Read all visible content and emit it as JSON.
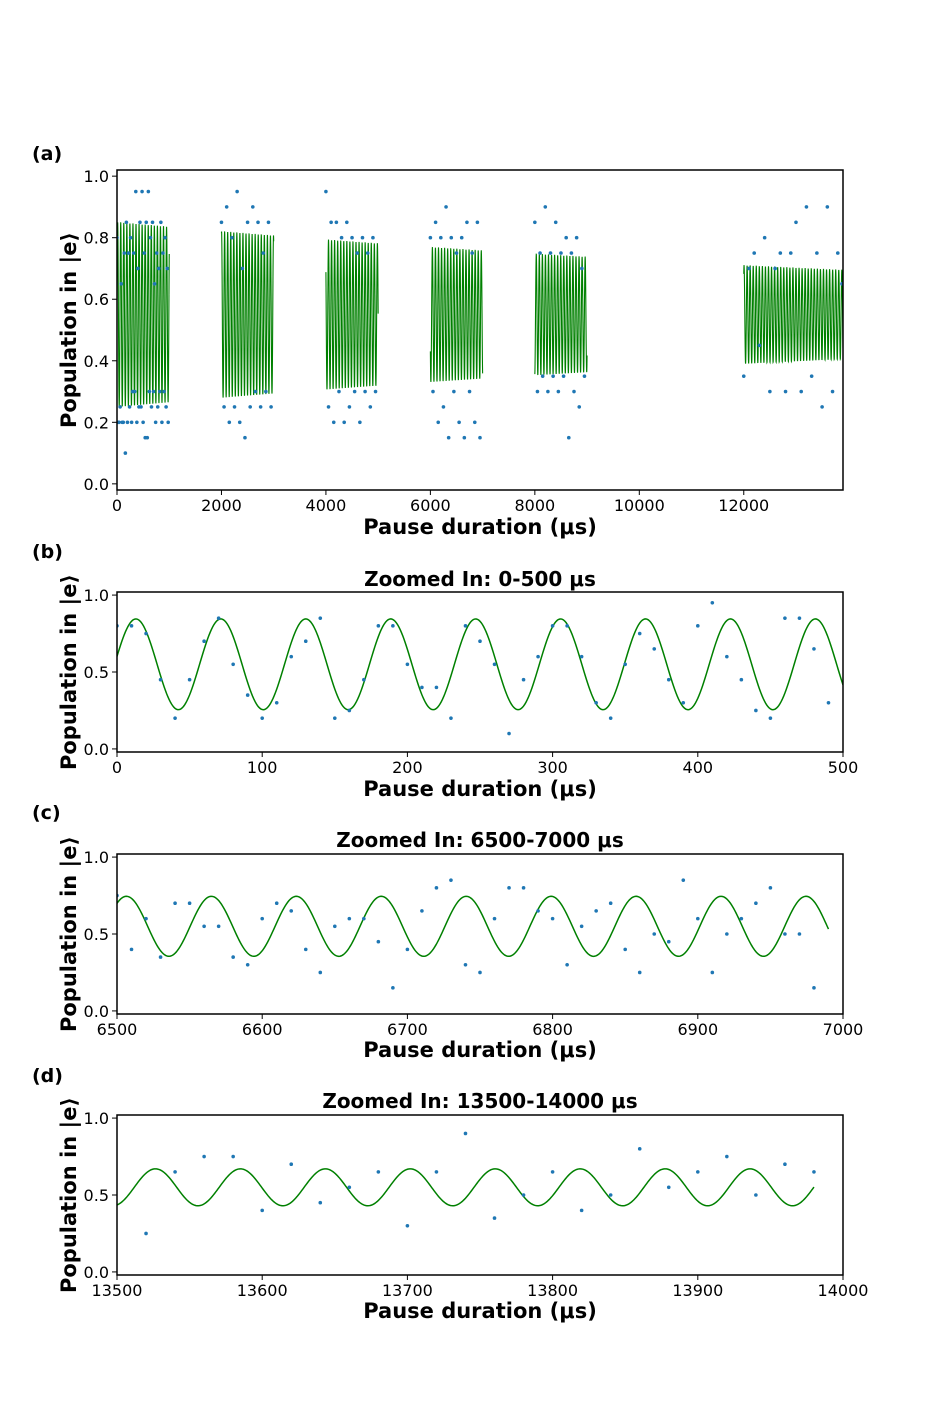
{
  "chart_data": [
    {
      "panel_label": "(a)",
      "type": "scatter",
      "title": "",
      "xlabel": "Pause duration (μs)",
      "ylabel": "Population in |e⟩",
      "xlim": [
        0,
        13900
      ],
      "ylim": [
        -0.02,
        1.02
      ],
      "xticks": [
        0,
        2000,
        4000,
        6000,
        8000,
        10000,
        12000
      ],
      "xtick_labels": [
        "0",
        "2000",
        "4000",
        "6000",
        "8000",
        "10000",
        "12000"
      ],
      "yticks": [
        0.0,
        0.2,
        0.4,
        0.6,
        0.8,
        1.0
      ],
      "ytick_labels": [
        "0.0",
        "0.2",
        "0.4",
        "0.6",
        "0.8",
        "1.0"
      ],
      "data_color": "#1f77b4",
      "fit_color": "#008000",
      "fit": {
        "period": 58.5,
        "phase": 13,
        "center": 0.55,
        "amplitude_start": 0.3,
        "decay_time": 19000
      },
      "windows": [
        [
          0,
          1000
        ],
        [
          2000,
          3000
        ],
        [
          4000,
          5000
        ],
        [
          6000,
          7000
        ],
        [
          8000,
          9000
        ],
        [
          12000,
          13900
        ]
      ],
      "data_points": [
        [
          0,
          0.8
        ],
        [
          20,
          0.2
        ],
        [
          40,
          0.2
        ],
        [
          60,
          0.25
        ],
        [
          80,
          0.65
        ],
        [
          100,
          0.2
        ],
        [
          120,
          0.2
        ],
        [
          140,
          0.75
        ],
        [
          160,
          0.1
        ],
        [
          180,
          0.85
        ],
        [
          200,
          0.2
        ],
        [
          220,
          0.75
        ],
        [
          240,
          0.25
        ],
        [
          260,
          0.8
        ],
        [
          280,
          0.2
        ],
        [
          300,
          0.3
        ],
        [
          320,
          0.75
        ],
        [
          340,
          0.3
        ],
        [
          360,
          0.95
        ],
        [
          380,
          0.2
        ],
        [
          400,
          0.7
        ],
        [
          420,
          0.25
        ],
        [
          440,
          0.85
        ],
        [
          460,
          0.25
        ],
        [
          480,
          0.95
        ],
        [
          500,
          0.2
        ],
        [
          520,
          0.75
        ],
        [
          540,
          0.15
        ],
        [
          560,
          0.85
        ],
        [
          580,
          0.15
        ],
        [
          600,
          0.95
        ],
        [
          620,
          0.3
        ],
        [
          640,
          0.8
        ],
        [
          660,
          0.25
        ],
        [
          680,
          0.85
        ],
        [
          700,
          0.3
        ],
        [
          720,
          0.65
        ],
        [
          740,
          0.2
        ],
        [
          760,
          0.75
        ],
        [
          780,
          0.25
        ],
        [
          800,
          0.7
        ],
        [
          820,
          0.3
        ],
        [
          840,
          0.85
        ],
        [
          860,
          0.2
        ],
        [
          880,
          0.75
        ],
        [
          900,
          0.3
        ],
        [
          920,
          0.8
        ],
        [
          940,
          0.25
        ],
        [
          960,
          0.7
        ],
        [
          980,
          0.2
        ],
        [
          2000,
          0.85
        ],
        [
          2050,
          0.25
        ],
        [
          2100,
          0.9
        ],
        [
          2150,
          0.2
        ],
        [
          2200,
          0.8
        ],
        [
          2250,
          0.25
        ],
        [
          2300,
          0.95
        ],
        [
          2350,
          0.2
        ],
        [
          2400,
          0.7
        ],
        [
          2450,
          0.15
        ],
        [
          2500,
          0.85
        ],
        [
          2550,
          0.25
        ],
        [
          2600,
          0.9
        ],
        [
          2650,
          0.3
        ],
        [
          2700,
          0.85
        ],
        [
          2750,
          0.25
        ],
        [
          2800,
          0.75
        ],
        [
          2850,
          0.3
        ],
        [
          2900,
          0.85
        ],
        [
          2950,
          0.25
        ],
        [
          4000,
          0.95
        ],
        [
          4050,
          0.25
        ],
        [
          4100,
          0.85
        ],
        [
          4150,
          0.2
        ],
        [
          4200,
          0.85
        ],
        [
          4250,
          0.3
        ],
        [
          4300,
          0.8
        ],
        [
          4350,
          0.2
        ],
        [
          4400,
          0.85
        ],
        [
          4450,
          0.25
        ],
        [
          4500,
          0.8
        ],
        [
          4550,
          0.3
        ],
        [
          4600,
          0.75
        ],
        [
          4650,
          0.2
        ],
        [
          4700,
          0.8
        ],
        [
          4750,
          0.3
        ],
        [
          4800,
          0.75
        ],
        [
          4850,
          0.25
        ],
        [
          4900,
          0.8
        ],
        [
          4950,
          0.3
        ],
        [
          6000,
          0.8
        ],
        [
          6050,
          0.3
        ],
        [
          6100,
          0.85
        ],
        [
          6150,
          0.2
        ],
        [
          6200,
          0.8
        ],
        [
          6250,
          0.25
        ],
        [
          6300,
          0.9
        ],
        [
          6350,
          0.15
        ],
        [
          6400,
          0.8
        ],
        [
          6450,
          0.3
        ],
        [
          6500,
          0.75
        ],
        [
          6550,
          0.2
        ],
        [
          6600,
          0.8
        ],
        [
          6650,
          0.15
        ],
        [
          6700,
          0.85
        ],
        [
          6750,
          0.3
        ],
        [
          6800,
          0.75
        ],
        [
          6850,
          0.2
        ],
        [
          6900,
          0.85
        ],
        [
          6950,
          0.15
        ],
        [
          8000,
          0.85
        ],
        [
          8050,
          0.3
        ],
        [
          8100,
          0.75
        ],
        [
          8150,
          0.35
        ],
        [
          8200,
          0.9
        ],
        [
          8250,
          0.3
        ],
        [
          8300,
          0.75
        ],
        [
          8350,
          0.35
        ],
        [
          8400,
          0.85
        ],
        [
          8450,
          0.3
        ],
        [
          8500,
          0.75
        ],
        [
          8550,
          0.35
        ],
        [
          8600,
          0.8
        ],
        [
          8650,
          0.15
        ],
        [
          8700,
          0.75
        ],
        [
          8750,
          0.3
        ],
        [
          8800,
          0.8
        ],
        [
          8850,
          0.25
        ],
        [
          8900,
          0.7
        ],
        [
          8950,
          0.35
        ],
        [
          12000,
          0.35
        ],
        [
          12100,
          0.7
        ],
        [
          12200,
          0.75
        ],
        [
          12300,
          0.45
        ],
        [
          12400,
          0.8
        ],
        [
          12500,
          0.3
        ],
        [
          12600,
          0.7
        ],
        [
          12700,
          0.75
        ],
        [
          12800,
          0.3
        ],
        [
          12900,
          0.75
        ],
        [
          13000,
          0.85
        ],
        [
          13100,
          0.3
        ],
        [
          13200,
          0.9
        ],
        [
          13300,
          0.35
        ],
        [
          13400,
          0.75
        ],
        [
          13500,
          0.25
        ],
        [
          13600,
          0.9
        ],
        [
          13700,
          0.3
        ],
        [
          13800,
          0.75
        ],
        [
          13880,
          0.65
        ]
      ]
    },
    {
      "panel_label": "(b)",
      "type": "scatter",
      "title": "Zoomed In: 0-500 μs",
      "xlabel": "Pause duration (μs)",
      "ylabel": "Population in |e⟩",
      "xlim": [
        0,
        500
      ],
      "ylim": [
        -0.02,
        1.02
      ],
      "xticks": [
        0,
        100,
        200,
        300,
        400,
        500
      ],
      "xtick_labels": [
        "0",
        "100",
        "200",
        "300",
        "400",
        "500"
      ],
      "yticks": [
        0.0,
        0.5,
        1.0
      ],
      "ytick_labels": [
        "0.0",
        "0.5",
        "1.0"
      ],
      "data_color": "#1f77b4",
      "fit_color": "#008000",
      "fit": {
        "period": 58.5,
        "phase": 13,
        "center": 0.55,
        "amplitude": 0.295
      },
      "data_points": [
        [
          0,
          0.8
        ],
        [
          10,
          0.8
        ],
        [
          20,
          0.75
        ],
        [
          30,
          0.45
        ],
        [
          40,
          0.2
        ],
        [
          50,
          0.45
        ],
        [
          60,
          0.7
        ],
        [
          70,
          0.85
        ],
        [
          80,
          0.55
        ],
        [
          90,
          0.35
        ],
        [
          100,
          0.2
        ],
        [
          110,
          0.3
        ],
        [
          120,
          0.6
        ],
        [
          130,
          0.7
        ],
        [
          140,
          0.85
        ],
        [
          150,
          0.2
        ],
        [
          160,
          0.25
        ],
        [
          170,
          0.45
        ],
        [
          180,
          0.8
        ],
        [
          190,
          0.8
        ],
        [
          200,
          0.55
        ],
        [
          210,
          0.4
        ],
        [
          220,
          0.4
        ],
        [
          230,
          0.2
        ],
        [
          240,
          0.8
        ],
        [
          250,
          0.7
        ],
        [
          260,
          0.55
        ],
        [
          270,
          0.1
        ],
        [
          280,
          0.45
        ],
        [
          290,
          0.6
        ],
        [
          300,
          0.8
        ],
        [
          310,
          0.8
        ],
        [
          320,
          0.6
        ],
        [
          330,
          0.3
        ],
        [
          340,
          0.2
        ],
        [
          350,
          0.55
        ],
        [
          360,
          0.75
        ],
        [
          370,
          0.65
        ],
        [
          380,
          0.45
        ],
        [
          390,
          0.3
        ],
        [
          400,
          0.8
        ],
        [
          410,
          0.95
        ],
        [
          420,
          0.6
        ],
        [
          430,
          0.45
        ],
        [
          440,
          0.25
        ],
        [
          450,
          0.2
        ],
        [
          460,
          0.85
        ],
        [
          470,
          0.85
        ],
        [
          480,
          0.65
        ],
        [
          490,
          0.3
        ]
      ]
    },
    {
      "panel_label": "(c)",
      "type": "scatter",
      "title": "Zoomed In: 6500-7000 μs",
      "xlabel": "Pause duration (μs)",
      "ylabel": "Population in |e⟩",
      "xlim": [
        6500,
        7000
      ],
      "ylim": [
        -0.02,
        1.02
      ],
      "xticks": [
        6500,
        6600,
        6700,
        6800,
        6900,
        7000
      ],
      "xtick_labels": [
        "6500",
        "6600",
        "6700",
        "6800",
        "6900",
        "7000"
      ],
      "yticks": [
        0.0,
        0.5,
        1.0
      ],
      "ytick_labels": [
        "0.0",
        "0.5",
        "1.0"
      ],
      "data_color": "#1f77b4",
      "fit_color": "#008000",
      "fit": {
        "period": 58.5,
        "phase": 13,
        "center": 0.55,
        "amplitude": 0.195,
        "x_end": 6990
      },
      "data_points": [
        [
          6500,
          0.75
        ],
        [
          6510,
          0.4
        ],
        [
          6520,
          0.6
        ],
        [
          6530,
          0.35
        ],
        [
          6540,
          0.7
        ],
        [
          6550,
          0.7
        ],
        [
          6560,
          0.55
        ],
        [
          6570,
          0.55
        ],
        [
          6580,
          0.35
        ],
        [
          6590,
          0.3
        ],
        [
          6600,
          0.6
        ],
        [
          6610,
          0.7
        ],
        [
          6620,
          0.65
        ],
        [
          6630,
          0.4
        ],
        [
          6640,
          0.25
        ],
        [
          6650,
          0.55
        ],
        [
          6660,
          0.6
        ],
        [
          6670,
          0.6
        ],
        [
          6680,
          0.45
        ],
        [
          6690,
          0.15
        ],
        [
          6700,
          0.4
        ],
        [
          6710,
          0.65
        ],
        [
          6720,
          0.8
        ],
        [
          6730,
          0.85
        ],
        [
          6740,
          0.3
        ],
        [
          6750,
          0.25
        ],
        [
          6760,
          0.6
        ],
        [
          6770,
          0.8
        ],
        [
          6780,
          0.8
        ],
        [
          6790,
          0.65
        ],
        [
          6800,
          0.6
        ],
        [
          6810,
          0.3
        ],
        [
          6820,
          0.55
        ],
        [
          6830,
          0.65
        ],
        [
          6840,
          0.7
        ],
        [
          6850,
          0.4
        ],
        [
          6860,
          0.25
        ],
        [
          6870,
          0.5
        ],
        [
          6880,
          0.45
        ],
        [
          6890,
          0.85
        ],
        [
          6900,
          0.6
        ],
        [
          6910,
          0.25
        ],
        [
          6920,
          0.5
        ],
        [
          6930,
          0.6
        ],
        [
          6940,
          0.7
        ],
        [
          6950,
          0.8
        ],
        [
          6960,
          0.5
        ],
        [
          6970,
          0.5
        ],
        [
          6980,
          0.15
        ]
      ]
    },
    {
      "panel_label": "(d)",
      "type": "scatter",
      "title": "Zoomed In: 13500-14000 μs",
      "xlabel": "Pause duration (μs)",
      "ylabel": "Population in |e⟩",
      "xlim": [
        13500,
        14000
      ],
      "ylim": [
        -0.02,
        1.02
      ],
      "xticks": [
        13500,
        13600,
        13700,
        13800,
        13900,
        14000
      ],
      "xtick_labels": [
        "13500",
        "13600",
        "13700",
        "13800",
        "13900",
        "14000"
      ],
      "yticks": [
        0.0,
        0.5,
        1.0
      ],
      "ytick_labels": [
        "0.0",
        "0.5",
        "1.0"
      ],
      "data_color": "#1f77b4",
      "fit_color": "#008000",
      "fit": {
        "period": 58.5,
        "phase": 13,
        "center": 0.55,
        "amplitude": 0.12,
        "x_end": 13980
      },
      "data_points": [
        [
          13520,
          0.25
        ],
        [
          13540,
          0.65
        ],
        [
          13560,
          0.75
        ],
        [
          13580,
          0.75
        ],
        [
          13600,
          0.4
        ],
        [
          13620,
          0.7
        ],
        [
          13640,
          0.45
        ],
        [
          13660,
          0.55
        ],
        [
          13680,
          0.65
        ],
        [
          13700,
          0.3
        ],
        [
          13720,
          0.65
        ],
        [
          13740,
          0.9
        ],
        [
          13760,
          0.35
        ],
        [
          13780,
          0.5
        ],
        [
          13800,
          0.65
        ],
        [
          13820,
          0.4
        ],
        [
          13840,
          0.5
        ],
        [
          13860,
          0.8
        ],
        [
          13880,
          0.55
        ],
        [
          13900,
          0.65
        ],
        [
          13920,
          0.75
        ],
        [
          13940,
          0.5
        ],
        [
          13960,
          0.7
        ],
        [
          13980,
          0.65
        ]
      ]
    }
  ]
}
